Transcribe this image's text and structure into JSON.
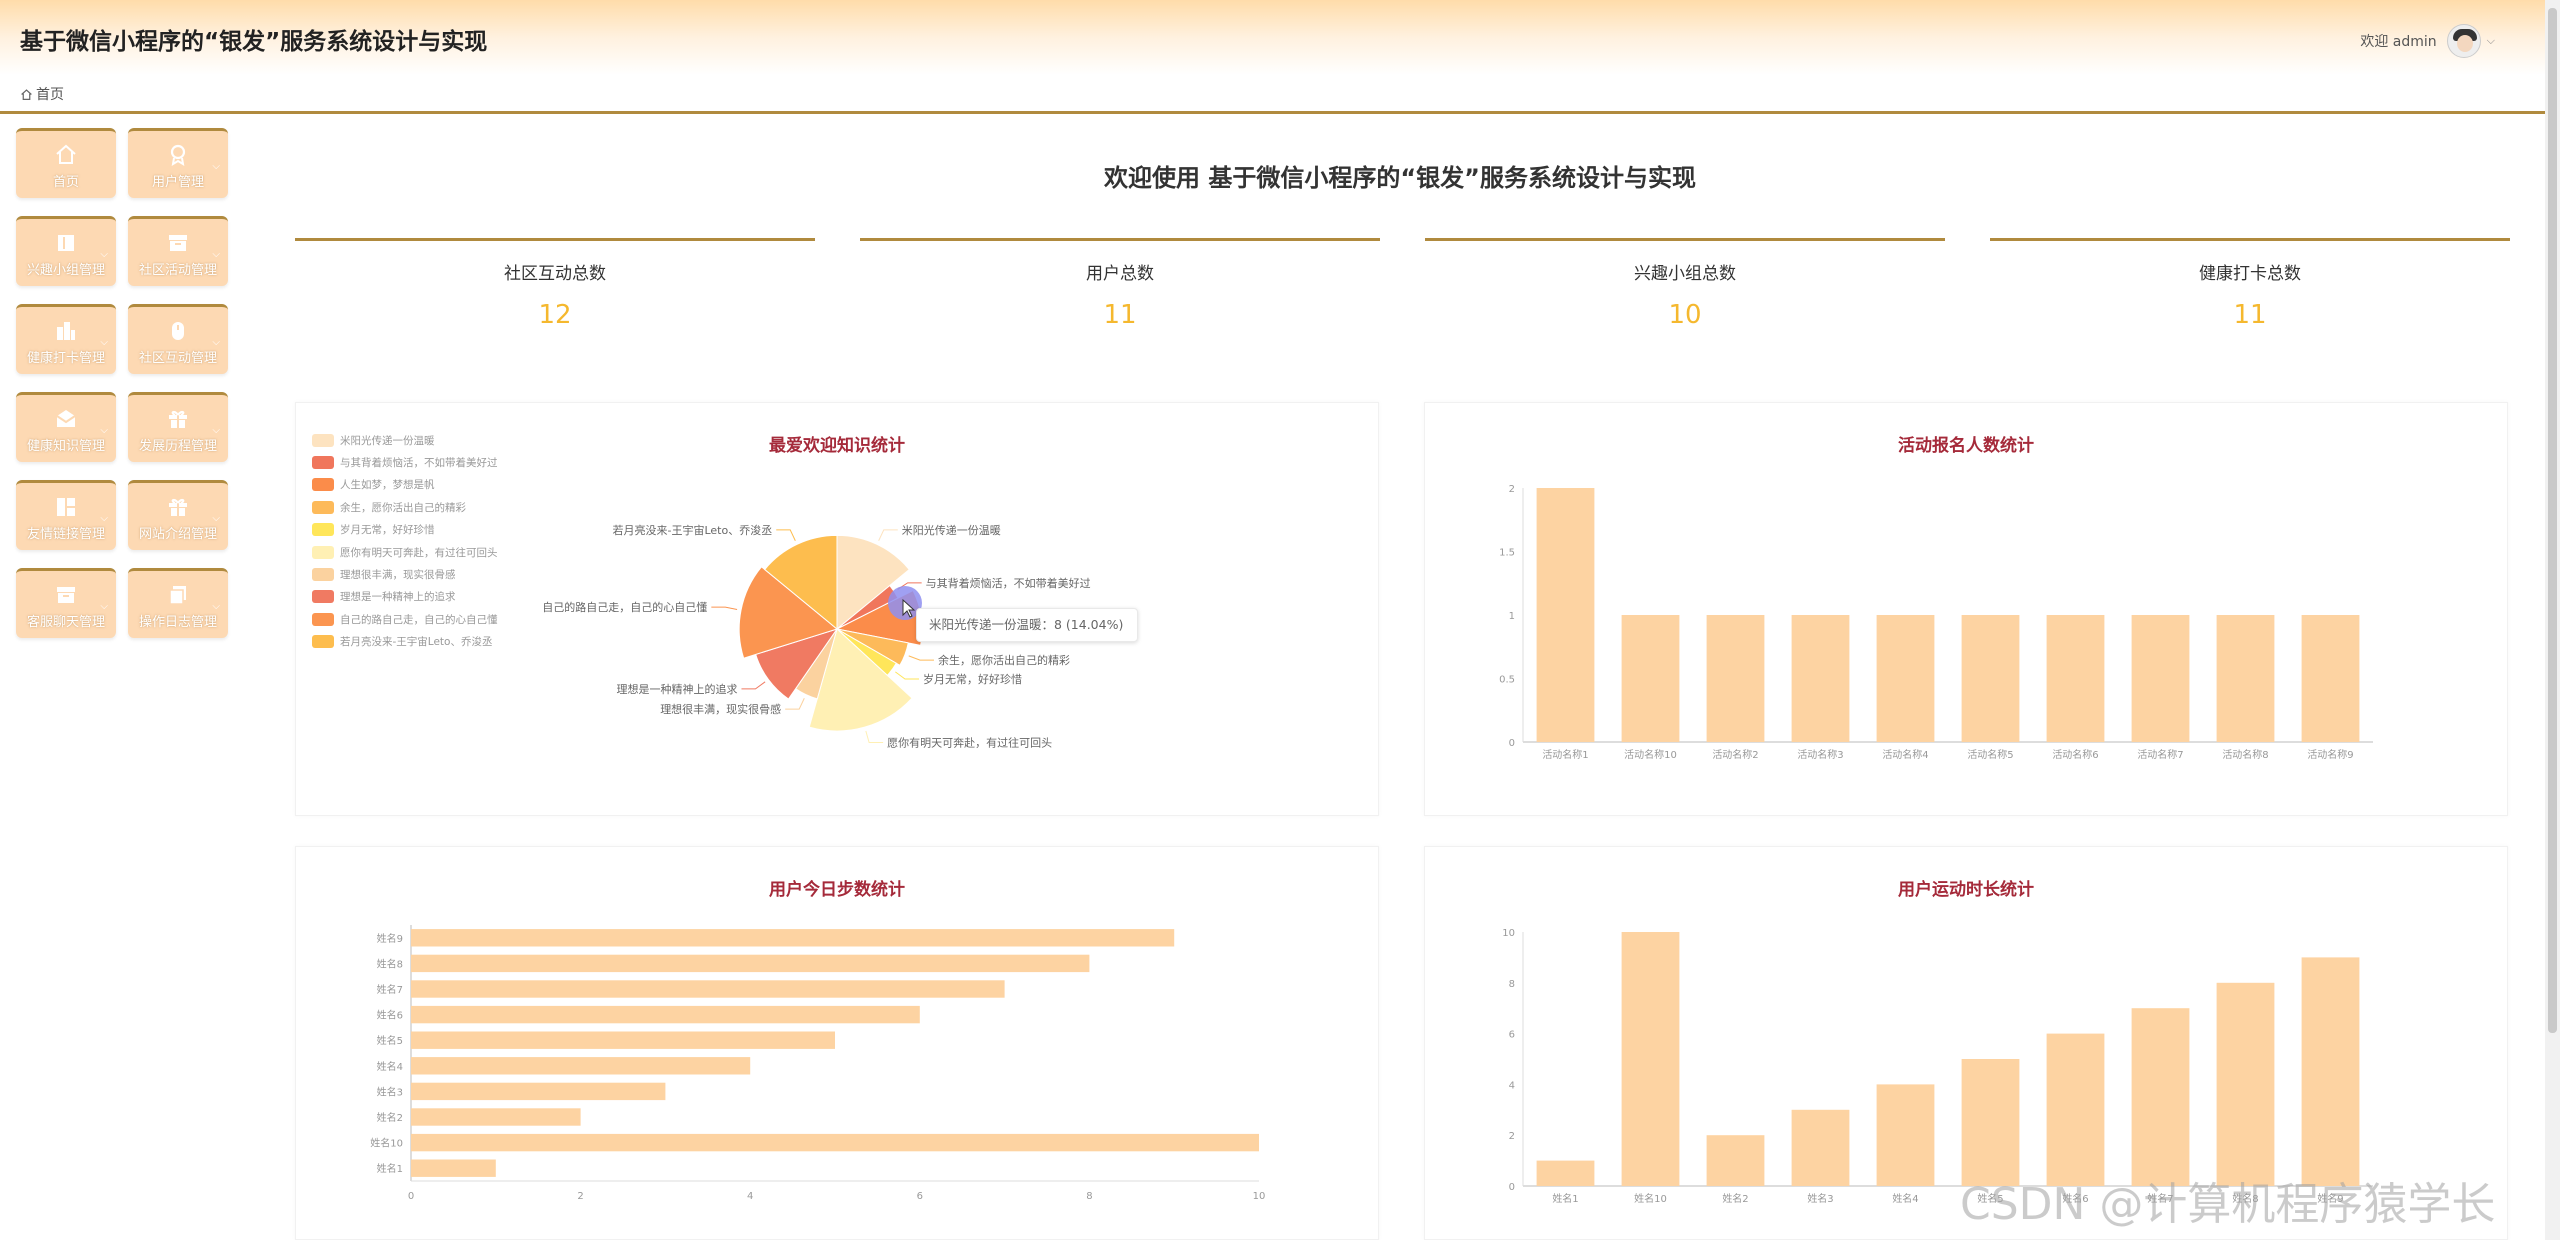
{
  "header": {
    "title": "基于微信小程序的“银发”服务系统设计与实现",
    "welcome_user": "欢迎 admin"
  },
  "breadcrumb": {
    "home": "首页"
  },
  "sidebar": {
    "items": [
      {
        "label": "首页",
        "icon": "home-icon",
        "expandable": false
      },
      {
        "label": "用户管理",
        "icon": "user-icon",
        "expandable": true
      },
      {
        "label": "兴趣小组管理",
        "icon": "book-icon",
        "expandable": true
      },
      {
        "label": "社区活动管理",
        "icon": "archive-icon",
        "expandable": true
      },
      {
        "label": "健康打卡管理",
        "icon": "buildings-icon",
        "expandable": true
      },
      {
        "label": "社区互动管理",
        "icon": "mouse-icon",
        "expandable": true
      },
      {
        "label": "健康知识管理",
        "icon": "envelope-icon",
        "expandable": true
      },
      {
        "label": "发展历程管理",
        "icon": "gift-icon",
        "expandable": true
      },
      {
        "label": "友情链接管理",
        "icon": "grid-icon",
        "expandable": true
      },
      {
        "label": "网站介绍管理",
        "icon": "gift-icon",
        "expandable": true
      },
      {
        "label": "客服聊天管理",
        "icon": "archive-icon",
        "expandable": true
      },
      {
        "label": "操作日志管理",
        "icon": "copy-icon",
        "expandable": true
      }
    ]
  },
  "welcome": "欢迎使用 基于微信小程序的“银发”服务系统设计与实现",
  "stats": [
    {
      "label": "社区互动总数",
      "value": "12"
    },
    {
      "label": "用户总数",
      "value": "11"
    },
    {
      "label": "兴趣小组总数",
      "value": "10"
    },
    {
      "label": "健康打卡总数",
      "value": "11"
    }
  ],
  "colors": {
    "accent_rule": "#b08a3e",
    "stat_value": "#f5b82e",
    "panel_title": "#a52a3a",
    "bar_fill": "#fdd3a2"
  },
  "chart_data": [
    {
      "type": "pie",
      "title": "最爱欢迎知识统计",
      "legend_position": "left",
      "slices": [
        {
          "name": "米阳光传递一份温暖",
          "value": 8,
          "color": "#fde3c0"
        },
        {
          "name": "与其背着烦恼活，不如带着美好过",
          "value": 2,
          "color": "#f0765c"
        },
        {
          "name": "人生如梦，梦想是帆",
          "value": 6,
          "color": "#fb8c4a"
        },
        {
          "name": "余生，愿你活出自己的精彩",
          "value": 3,
          "color": "#fdba5a"
        },
        {
          "name": "岁月无常，好好珍惜",
          "value": 2,
          "color": "#ffe65a"
        },
        {
          "name": "愿你有明天可奔赴，有过往可回头",
          "value": 10,
          "color": "#fff0b4"
        },
        {
          "name": "理想很丰满，现实很骨感",
          "value": 3,
          "color": "#fbd29f"
        },
        {
          "name": "理想是一种精神上的追求",
          "value": 6,
          "color": "#f07a62"
        },
        {
          "name": "自己的路自己走，自己的心自己懂",
          "value": 9,
          "color": "#fb9550"
        },
        {
          "name": "若月亮没来-王宇宙Leto、乔浚丞",
          "value": 8,
          "color": "#fdbd4e"
        }
      ],
      "tooltip": "米阳光传递一份温暖：8 (14.04%)"
    },
    {
      "type": "bar",
      "title": "活动报名人数统计",
      "categories": [
        "活动名称1",
        "活动名称10",
        "活动名称2",
        "活动名称3",
        "活动名称4",
        "活动名称5",
        "活动名称6",
        "活动名称7",
        "活动名称8",
        "活动名称9"
      ],
      "values": [
        2,
        1,
        1,
        1,
        1,
        1,
        1,
        1,
        1,
        1
      ],
      "ylim": [
        0,
        2
      ],
      "yticks": [
        "0",
        "0.5",
        "1",
        "1.5",
        "2"
      ],
      "grid": false
    },
    {
      "type": "bar",
      "orientation": "horizontal",
      "title": "用户今日步数统计",
      "categories": [
        "姓名1",
        "姓名10",
        "姓名2",
        "姓名3",
        "姓名4",
        "姓名5",
        "姓名6",
        "姓名7",
        "姓名8",
        "姓名9"
      ],
      "values": [
        1,
        10,
        2,
        3,
        4,
        5,
        6,
        7,
        8,
        9
      ],
      "xlim": [
        0,
        10
      ],
      "xticks": [
        "0",
        "2",
        "4",
        "6",
        "8",
        "10"
      ],
      "grid": false
    },
    {
      "type": "bar",
      "title": "用户运动时长统计",
      "categories": [
        "姓名1",
        "姓名10",
        "姓名2",
        "姓名3",
        "姓名4",
        "姓名5",
        "姓名6",
        "姓名7",
        "姓名8",
        "姓名9"
      ],
      "values": [
        1,
        10,
        2,
        3,
        4,
        5,
        6,
        7,
        8,
        9
      ],
      "ylim": [
        0,
        10
      ],
      "yticks": [
        "0",
        "2",
        "4",
        "6",
        "8",
        "10"
      ],
      "grid": false
    }
  ],
  "watermark": "CSDN @计算机程序猿学长"
}
